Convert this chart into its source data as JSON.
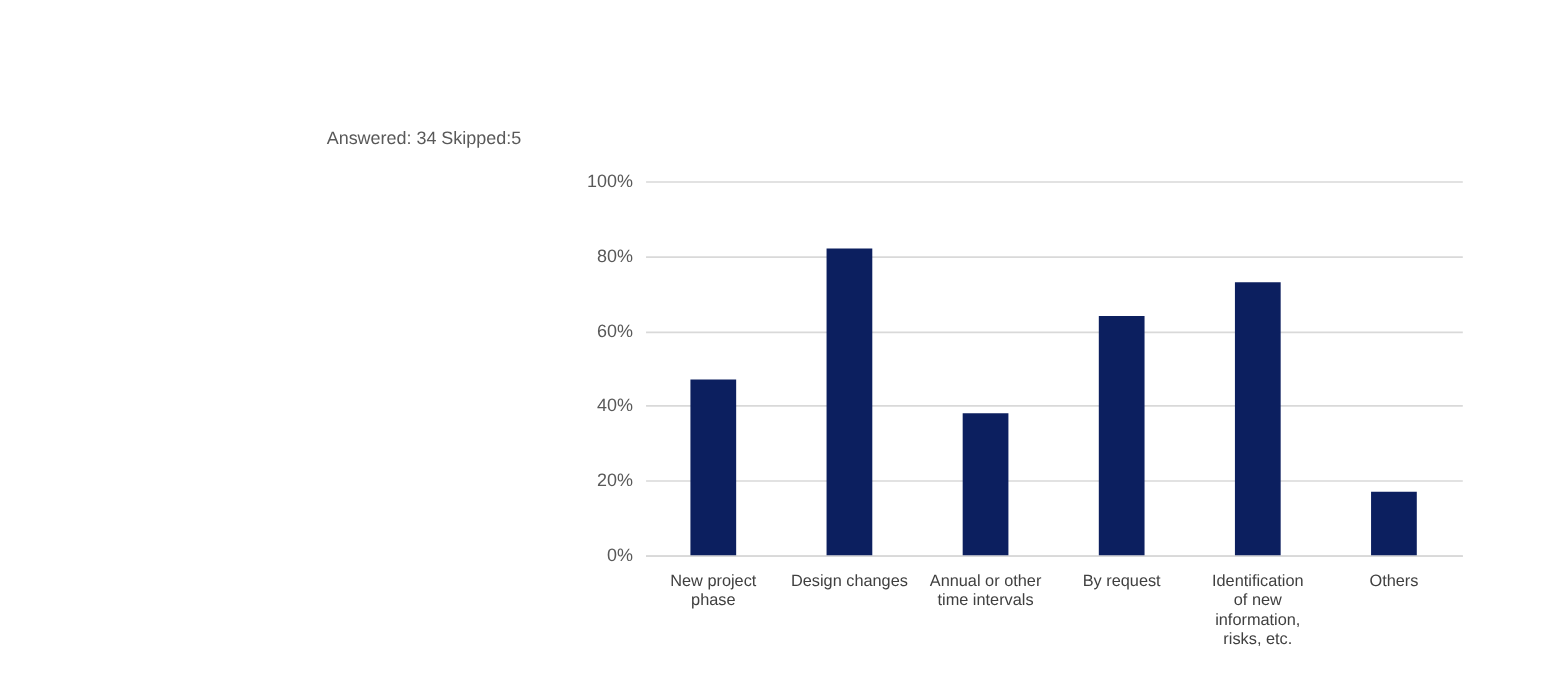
{
  "chart_data": {
    "type": "bar",
    "categories": [
      "New project phase",
      "Design changes",
      "Annual or other time intervals",
      "By request",
      "Identification of new information, risks, etc.",
      "Others"
    ],
    "values": [
      47,
      82,
      38,
      64,
      73,
      17
    ],
    "color": "#0c1f5f",
    "ylim": [
      0,
      100
    ],
    "yticks": [
      {
        "value": 0,
        "label": "0%"
      },
      {
        "value": 20,
        "label": "20%"
      },
      {
        "value": 40,
        "label": "40%"
      },
      {
        "value": 60,
        "label": "60%"
      },
      {
        "value": 80,
        "label": "80%"
      },
      {
        "value": 100,
        "label": "100%"
      }
    ],
    "grid": "y",
    "annotations": [
      "Answered: 34   Skipped:5"
    ]
  }
}
